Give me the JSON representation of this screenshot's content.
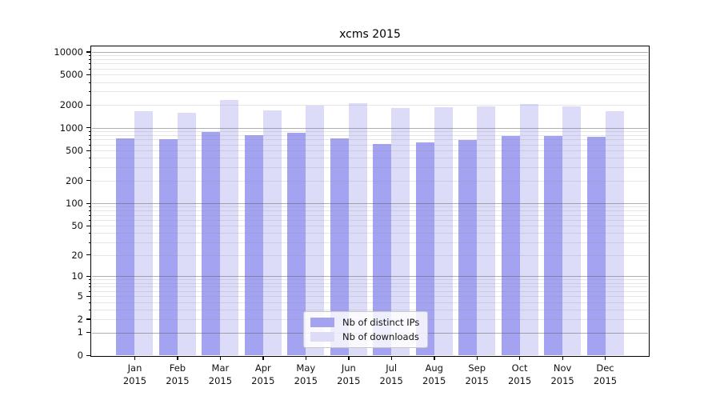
{
  "chart_data": {
    "type": "bar",
    "title": "xcms 2015",
    "xlabel": "",
    "ylabel": "",
    "yscale": "log1p",
    "grid": "horizontal, minor log lines, darker lines at powers of 10",
    "legend_position": "lower center inside plot",
    "ylim": [
      0,
      11500
    ],
    "yticks": [
      0,
      1,
      2,
      5,
      10,
      20,
      50,
      100,
      200,
      500,
      1000,
      2000,
      5000,
      10000
    ],
    "ytick_labels": [
      "0",
      "1",
      "2",
      "5",
      "10",
      "20",
      "50",
      "100",
      "200",
      "500",
      "1000",
      "2000",
      "5000",
      "10000"
    ],
    "categories": [
      "Jan",
      "Feb",
      "Mar",
      "Apr",
      "May",
      "Jun",
      "Jul",
      "Aug",
      "Sep",
      "Oct",
      "Nov",
      "Dec"
    ],
    "category_year": "2015",
    "series": [
      {
        "name": "Nb of distinct IPs",
        "color": "#a3a3f2",
        "values": [
          730,
          700,
          870,
          800,
          850,
          720,
          615,
          635,
          690,
          780,
          780,
          765
        ]
      },
      {
        "name": "Nb of downloads",
        "color": "#dcdcf9",
        "values": [
          1650,
          1570,
          2330,
          1700,
          1960,
          2100,
          1800,
          1870,
          1930,
          2050,
          1900,
          1650
        ]
      }
    ]
  }
}
